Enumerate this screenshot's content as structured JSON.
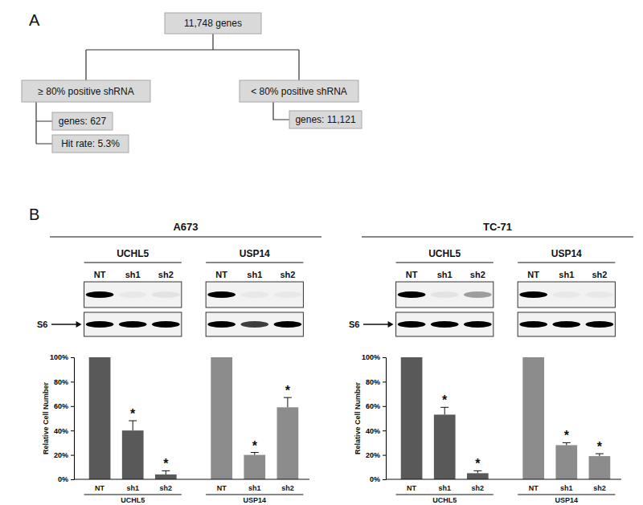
{
  "panel_a": {
    "label": "A",
    "root": "11,748 genes",
    "left": {
      "label": "≥ 80% positive shRNA",
      "items": [
        "genes: 627",
        "Hit rate: 5.3%"
      ]
    },
    "right": {
      "label": "< 80% positive shRNA",
      "items": [
        "genes: 11,121"
      ]
    }
  },
  "panel_b_label": "B",
  "chart_data": [
    {
      "type": "bar",
      "title": "A673",
      "y_label": "Relative Cell Number",
      "loading_control": "S6",
      "categories": [
        "NT",
        "sh1",
        "sh2"
      ],
      "ylim": [
        0,
        100
      ],
      "yticks": [
        {
          "value": 0,
          "label": "0%"
        },
        {
          "value": 20,
          "label": "20%"
        },
        {
          "value": 40,
          "label": "40%"
        },
        {
          "value": 60,
          "label": "60%"
        },
        {
          "value": 80,
          "label": "80%"
        },
        {
          "value": 100,
          "label": "100%"
        }
      ],
      "grid": false,
      "series": [
        {
          "name": "UCHL5",
          "color": "#595959",
          "values": [
            100,
            40,
            4
          ],
          "errors": [
            null,
            8,
            3
          ],
          "annotations": [
            null,
            "*",
            "*"
          ],
          "blot": {
            "target": [
              1,
              0.04,
              0.06
            ],
            "control": [
              1,
              1,
              1
            ]
          }
        },
        {
          "name": "USP14",
          "color": "#8c8c8c",
          "values": [
            100,
            20,
            59
          ],
          "errors": [
            null,
            2,
            8
          ],
          "annotations": [
            null,
            "*",
            "*"
          ],
          "blot": {
            "target": [
              1,
              0.04,
              0.04
            ],
            "control": [
              1,
              0.75,
              1
            ]
          }
        }
      ]
    },
    {
      "type": "bar",
      "title": "TC-71",
      "y_label": "Relative Cell Number",
      "loading_control": "S6",
      "categories": [
        "NT",
        "sh1",
        "sh2"
      ],
      "ylim": [
        0,
        100
      ],
      "yticks": [
        {
          "value": 0,
          "label": "0%"
        },
        {
          "value": 20,
          "label": "20%"
        },
        {
          "value": 40,
          "label": "40%"
        },
        {
          "value": 60,
          "label": "60%"
        },
        {
          "value": 80,
          "label": "80%"
        },
        {
          "value": 100,
          "label": "100%"
        }
      ],
      "grid": false,
      "series": [
        {
          "name": "UCHL5",
          "color": "#595959",
          "values": [
            100,
            53,
            5
          ],
          "errors": [
            null,
            6,
            2
          ],
          "annotations": [
            null,
            "*",
            "*"
          ],
          "blot": {
            "target": [
              1,
              0.06,
              0.35
            ],
            "control": [
              1,
              1,
              1
            ]
          }
        },
        {
          "name": "USP14",
          "color": "#8c8c8c",
          "values": [
            100,
            28,
            19
          ],
          "errors": [
            null,
            2,
            2
          ],
          "annotations": [
            null,
            "*",
            "*"
          ],
          "blot": {
            "target": [
              1,
              0.04,
              0.04
            ],
            "control": [
              1,
              1,
              1
            ]
          }
        }
      ]
    }
  ]
}
